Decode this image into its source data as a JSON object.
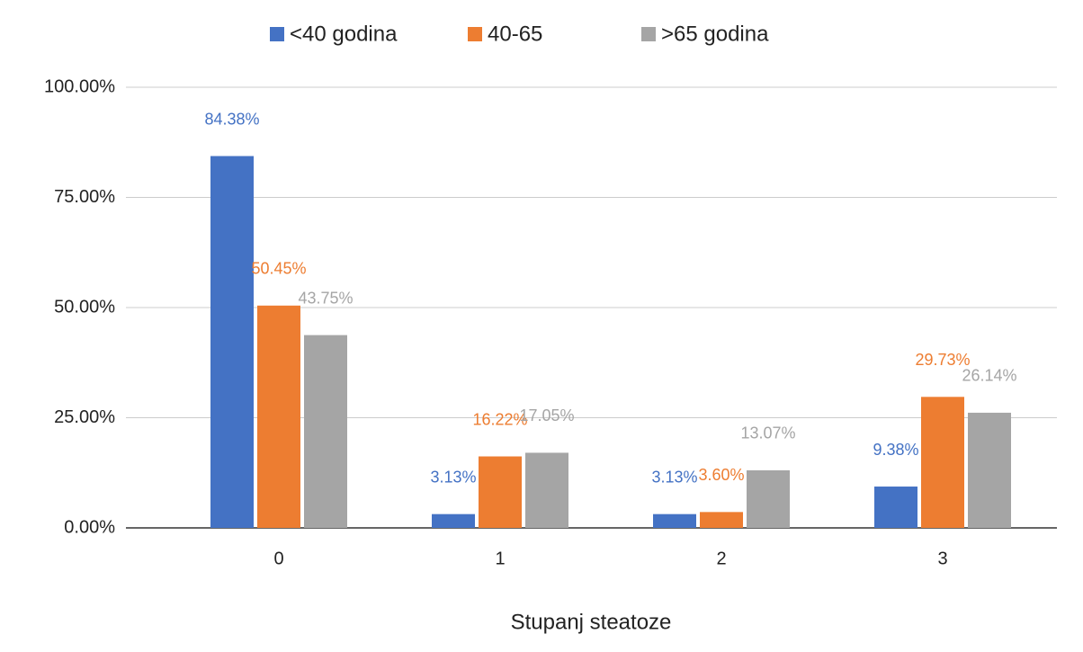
{
  "chart_data": {
    "type": "bar",
    "x_label": "Stupanj steatoze",
    "categories": [
      "0",
      "1",
      "2",
      "3"
    ],
    "series": [
      {
        "name": "<40 godina",
        "color": "#4472c4",
        "values": [
          84.38,
          3.13,
          3.13,
          9.38
        ],
        "value_labels": [
          "84.38%",
          "3.13%",
          "3.13%",
          "9.38%"
        ]
      },
      {
        "name": "40-65",
        "color": "#ed7d31",
        "values": [
          50.45,
          16.22,
          3.6,
          29.73
        ],
        "value_labels": [
          "50.45%",
          "16.22%",
          "3.60%",
          "29.73%"
        ]
      },
      {
        "name": ">65 godina",
        "color": "#a5a5a5",
        "values": [
          43.75,
          17.05,
          13.07,
          26.14
        ],
        "value_labels": [
          "43.75%",
          "17.05%",
          "13.07%",
          "26.14%"
        ]
      }
    ],
    "ylim": [
      0,
      100
    ],
    "yticks": [
      {
        "value": 0,
        "label": "0.00%"
      },
      {
        "value": 25,
        "label": "25.00%"
      },
      {
        "value": 50,
        "label": "50.00%"
      },
      {
        "value": 75,
        "label": "75.00%"
      },
      {
        "value": 100,
        "label": "100.00%"
      }
    ],
    "grid": true,
    "legend": "top"
  }
}
